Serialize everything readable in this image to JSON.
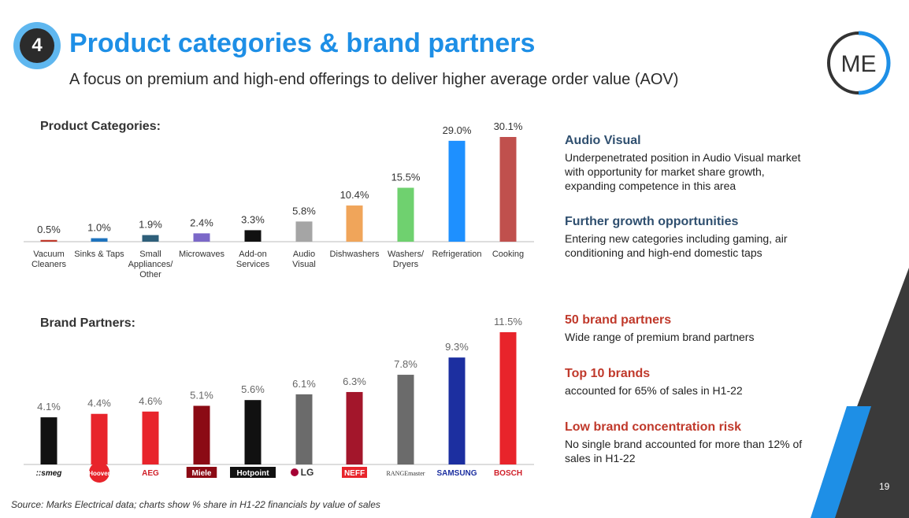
{
  "header": {
    "section_number": "4",
    "title": "Product categories & brand partners",
    "subtitle": "A focus on premium and high-end offerings to deliver higher average order value (AOV)",
    "logo_text": "ME"
  },
  "chart_data": [
    {
      "type": "bar",
      "title": "Product Categories:",
      "categories": [
        "Vacuum Cleaners",
        "Sinks & Taps",
        "Small Appliances/ Other",
        "Microwaves",
        "Add-on Services",
        "Audio Visual",
        "Dishwashers",
        "Washers/ Dryers",
        "Refrigeration",
        "Cooking"
      ],
      "category_lines": [
        [
          "Vacuum",
          "Cleaners"
        ],
        [
          "Sinks & Taps"
        ],
        [
          "Small",
          "Appliances/",
          "Other"
        ],
        [
          "Microwaves"
        ],
        [
          "Add-on",
          "Services"
        ],
        [
          "Audio",
          "Visual"
        ],
        [
          "Dishwashers"
        ],
        [
          "Washers/",
          "Dryers"
        ],
        [
          "Refrigeration"
        ],
        [
          "Cooking"
        ]
      ],
      "values": [
        0.5,
        1.0,
        1.9,
        2.4,
        3.3,
        5.8,
        10.4,
        15.5,
        29.0,
        30.1
      ],
      "labels": [
        "0.5%",
        "1.0%",
        "1.9%",
        "2.4%",
        "3.3%",
        "5.8%",
        "10.4%",
        "15.5%",
        "29.0%",
        "30.1%"
      ],
      "colors": [
        "#c0392b",
        "#1e73be",
        "#2e5f7a",
        "#7b68c8",
        "#111111",
        "#a5a5a5",
        "#f0a55a",
        "#6fd16f",
        "#1e90ff",
        "#c0504d"
      ],
      "unit": "%",
      "grid": false
    },
    {
      "type": "bar",
      "title": "Brand Partners:",
      "categories": [
        "smeg",
        "Hoover",
        "AEG",
        "Miele",
        "Hotpoint",
        "LG",
        "NEFF",
        "RANGEMASTER",
        "SAMSUNG",
        "BOSCH"
      ],
      "values": [
        4.1,
        4.4,
        4.6,
        5.1,
        5.6,
        6.1,
        6.3,
        7.8,
        9.3,
        11.5
      ],
      "labels": [
        "4.1%",
        "4.4%",
        "4.6%",
        "5.1%",
        "5.6%",
        "6.1%",
        "6.3%",
        "7.8%",
        "9.3%",
        "11.5%"
      ],
      "colors": [
        "#111111",
        "#e8242b",
        "#e8242b",
        "#8b0a14",
        "#111111",
        "#6b6b6b",
        "#a3162b",
        "#6b6b6b",
        "#1c2fa0",
        "#e8242b"
      ],
      "logo_styles": [
        {
          "text": "::smeg",
          "color": "#111111",
          "bg": "",
          "style": "italic-bold"
        },
        {
          "text": "Hoover",
          "color": "#ffffff",
          "bg": "#e8242b",
          "style": "circle"
        },
        {
          "text": "AEG",
          "color": "#d0202a",
          "bg": "",
          "style": "bold"
        },
        {
          "text": "Miele",
          "color": "#ffffff",
          "bg": "#8b0a14",
          "style": "box"
        },
        {
          "text": "Hotpoint",
          "color": "#ffffff",
          "bg": "#111111",
          "style": "box"
        },
        {
          "text": "LG",
          "color": "#333333",
          "bg": "",
          "style": "lg"
        },
        {
          "text": "NEFF",
          "color": "#ffffff",
          "bg": "#e8242b",
          "style": "box"
        },
        {
          "text": "RANGEmaster",
          "color": "#333333",
          "bg": "",
          "style": "serif"
        },
        {
          "text": "SAMSUNG",
          "color": "#1c2fa0",
          "bg": "",
          "style": "bold"
        },
        {
          "text": "BOSCH",
          "color": "#d0202a",
          "bg": "",
          "style": "bold"
        }
      ],
      "unit": "%",
      "grid": false
    }
  ],
  "side_panel": {
    "product": [
      {
        "heading": "Audio Visual",
        "text": "Underpenetrated position in Audio Visual market with opportunity for market share growth, expanding competence in this area"
      },
      {
        "heading": "Further growth opportunities",
        "text": "Entering new categories including gaming, air conditioning and high-end domestic taps"
      }
    ],
    "brands": [
      {
        "heading": "50 brand partners",
        "text": "Wide range of premium brand partners"
      },
      {
        "heading": "Top 10 brands",
        "text": "accounted for 65% of sales in H1-22"
      },
      {
        "heading": "Low brand concentration risk",
        "text": "No single brand accounted for more than 12% of sales in H1-22"
      }
    ]
  },
  "footer": {
    "source": "Source: Marks Electrical data; charts show % share in H1-22 financials by value of sales",
    "page_number": "19"
  },
  "colors": {
    "accent_blue": "#1e8fe6",
    "accent_red": "#c0392b",
    "dark": "#333333"
  }
}
